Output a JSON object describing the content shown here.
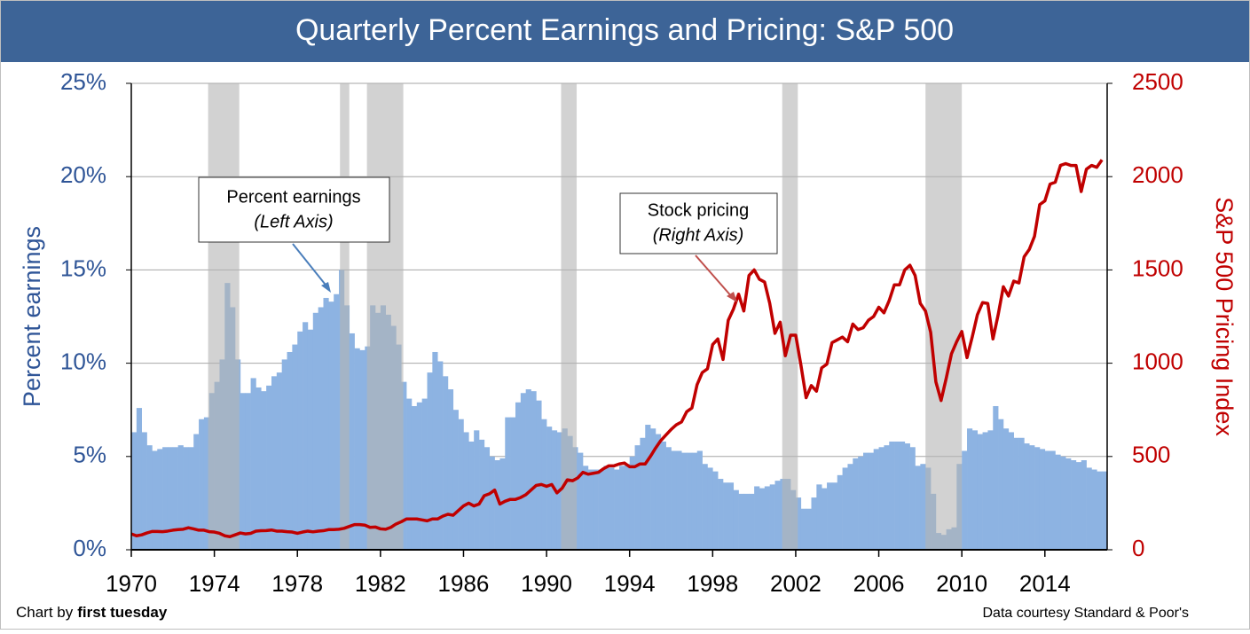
{
  "chart_data": {
    "type": "bar-line",
    "title": "Quarterly Percent Earnings and Pricing: S&P 500",
    "y_label": "Percent earnings",
    "y2_label": "S&P 500 Pricing Index",
    "credit_prefix": "Chart by",
    "credit_name": "first tuesday",
    "source": "Data courtesy Standard & Poor's",
    "annotations": [
      {
        "text": "Percent earnings",
        "subtext": "(Left Axis)"
      },
      {
        "text": "Stock pricing",
        "subtext": "(Right Axis)"
      }
    ],
    "xlim": [
      1970,
      2017
    ],
    "xticks": [
      1970,
      1974,
      1978,
      1982,
      1986,
      1990,
      1994,
      1998,
      2002,
      2006,
      2010,
      2014
    ],
    "ylim": [
      0,
      25
    ],
    "yticks": [
      {
        "value": 0,
        "label": "0%"
      },
      {
        "value": 5,
        "label": "5%"
      },
      {
        "value": 10,
        "label": "10%"
      },
      {
        "value": 15,
        "label": "15%"
      },
      {
        "value": 20,
        "label": "20%"
      },
      {
        "value": 25,
        "label": "25%"
      }
    ],
    "y2lim": [
      0,
      2500
    ],
    "y2ticks": [
      0,
      500,
      1000,
      1500,
      2000,
      2500
    ],
    "grid": true,
    "recession_color": "#b4b4b4",
    "recessions": [
      [
        1973.7,
        1975.2
      ],
      [
        1980.05,
        1980.5
      ],
      [
        1981.35,
        1983.1
      ],
      [
        1990.7,
        1991.45
      ],
      [
        2001.35,
        2002.1
      ],
      [
        2008.25,
        2010.0
      ]
    ],
    "x": [
      1970,
      1970.25,
      1970.5,
      1970.75,
      1971,
      1971.25,
      1971.5,
      1971.75,
      1972,
      1972.25,
      1972.5,
      1972.75,
      1973,
      1973.25,
      1973.5,
      1973.75,
      1974,
      1974.25,
      1974.5,
      1974.75,
      1975,
      1975.25,
      1975.5,
      1975.75,
      1976,
      1976.25,
      1976.5,
      1976.75,
      1977,
      1977.25,
      1977.5,
      1977.75,
      1978,
      1978.25,
      1978.5,
      1978.75,
      1979,
      1979.25,
      1979.5,
      1979.75,
      1980,
      1980.25,
      1980.5,
      1980.75,
      1981,
      1981.25,
      1981.5,
      1981.75,
      1982,
      1982.25,
      1982.5,
      1982.75,
      1983,
      1983.25,
      1983.5,
      1983.75,
      1984,
      1984.25,
      1984.5,
      1984.75,
      1985,
      1985.25,
      1985.5,
      1985.75,
      1986,
      1986.25,
      1986.5,
      1986.75,
      1987,
      1987.25,
      1987.5,
      1987.75,
      1988,
      1988.25,
      1988.5,
      1988.75,
      1989,
      1989.25,
      1989.5,
      1989.75,
      1990,
      1990.25,
      1990.5,
      1990.75,
      1991,
      1991.25,
      1991.5,
      1991.75,
      1992,
      1992.25,
      1992.5,
      1992.75,
      1993,
      1993.25,
      1993.5,
      1993.75,
      1994,
      1994.25,
      1994.5,
      1994.75,
      1995,
      1995.25,
      1995.5,
      1995.75,
      1996,
      1996.25,
      1996.5,
      1996.75,
      1997,
      1997.25,
      1997.5,
      1997.75,
      1998,
      1998.25,
      1998.5,
      1998.75,
      1999,
      1999.25,
      1999.5,
      1999.75,
      2000,
      2000.25,
      2000.5,
      2000.75,
      2001,
      2001.25,
      2001.5,
      2001.75,
      2002,
      2002.25,
      2002.5,
      2002.75,
      2003,
      2003.25,
      2003.5,
      2003.75,
      2004,
      2004.25,
      2004.5,
      2004.75,
      2005,
      2005.25,
      2005.5,
      2005.75,
      2006,
      2006.25,
      2006.5,
      2006.75,
      2007,
      2007.25,
      2007.5,
      2007.75,
      2008,
      2008.25,
      2008.5,
      2008.75,
      2009,
      2009.25,
      2009.5,
      2009.75,
      2010,
      2010.25,
      2010.5,
      2010.75,
      2011,
      2011.25,
      2011.5,
      2011.75,
      2012,
      2012.25,
      2012.5,
      2012.75,
      2013,
      2013.25,
      2013.5,
      2013.75,
      2014,
      2014.25,
      2014.5,
      2014.75,
      2015,
      2015.25,
      2015.5,
      2015.75,
      2016,
      2016.25,
      2016.5,
      2016.75
    ],
    "series": [
      {
        "kind": "bar",
        "axis": "y",
        "color": "#8db3e2",
        "values": [
          6.3,
          7.6,
          6.3,
          5.6,
          5.3,
          5.4,
          5.5,
          5.5,
          5.5,
          5.6,
          5.5,
          5.5,
          6.2,
          7.0,
          7.1,
          8.4,
          9.0,
          10.2,
          14.3,
          13.0,
          10.2,
          8.4,
          8.4,
          9.2,
          8.7,
          8.5,
          8.8,
          9.3,
          9.5,
          10.2,
          10.6,
          11.0,
          11.7,
          12.2,
          11.8,
          12.7,
          13.0,
          13.5,
          13.3,
          13.7,
          15.0,
          13.1,
          11.6,
          10.8,
          10.7,
          10.9,
          13.1,
          12.7,
          13.1,
          12.6,
          12.0,
          11.0,
          9.0,
          8.1,
          7.7,
          7.9,
          8.1,
          9.5,
          10.6,
          10.1,
          9.3,
          8.6,
          7.5,
          7.0,
          6.3,
          5.8,
          6.4,
          5.9,
          5.5,
          5.0,
          4.8,
          4.9,
          7.1,
          7.1,
          7.9,
          8.4,
          8.6,
          8.5,
          8.0,
          7.0,
          6.6,
          6.4,
          6.3,
          6.5,
          6.1,
          5.5,
          5.2,
          4.5,
          4.3,
          4.3,
          4.3,
          4.5,
          4.4,
          4.3,
          4.5,
          4.6,
          5.0,
          5.6,
          6.0,
          6.7,
          6.5,
          6.2,
          5.8,
          5.5,
          5.3,
          5.3,
          5.2,
          5.2,
          5.2,
          5.3,
          4.6,
          4.4,
          4.2,
          3.8,
          3.6,
          3.6,
          3.2,
          3.0,
          3.0,
          3.0,
          3.4,
          3.3,
          3.4,
          3.5,
          3.7,
          3.8,
          3.8,
          3.2,
          2.8,
          2.2,
          2.2,
          2.8,
          3.5,
          3.3,
          3.6,
          3.6,
          4.0,
          4.4,
          4.6,
          4.9,
          5.0,
          5.2,
          5.2,
          5.4,
          5.5,
          5.6,
          5.8,
          5.8,
          5.8,
          5.7,
          5.5,
          4.5,
          4.6,
          4.4,
          3.0,
          0.9,
          0.8,
          1.1,
          1.2,
          4.6,
          5.3,
          6.5,
          6.4,
          6.2,
          6.3,
          6.4,
          7.7,
          7.0,
          6.5,
          6.3,
          6.0,
          6.0,
          5.7,
          5.6,
          5.5,
          5.4,
          5.3,
          5.3,
          5.1,
          5.0,
          4.9,
          4.8,
          4.7,
          4.8,
          4.4,
          4.3,
          4.2,
          4.2
        ]
      },
      {
        "kind": "line",
        "axis": "y2",
        "color": "#c00000",
        "values": [
          85,
          75,
          80,
          90,
          98,
          98,
          97,
          100,
          105,
          108,
          110,
          118,
          112,
          105,
          105,
          97,
          95,
          88,
          75,
          70,
          80,
          90,
          85,
          88,
          100,
          102,
          103,
          106,
          100,
          100,
          97,
          95,
          88,
          95,
          100,
          96,
          100,
          102,
          108,
          108,
          110,
          115,
          125,
          135,
          135,
          132,
          120,
          122,
          112,
          110,
          120,
          138,
          150,
          165,
          165,
          165,
          160,
          155,
          165,
          165,
          180,
          190,
          185,
          210,
          235,
          250,
          235,
          245,
          290,
          300,
          320,
          245,
          260,
          270,
          270,
          280,
          295,
          320,
          345,
          350,
          340,
          350,
          305,
          330,
          375,
          370,
          385,
          415,
          405,
          410,
          415,
          435,
          450,
          450,
          460,
          465,
          445,
          445,
          460,
          460,
          500,
          545,
          585,
          615,
          645,
          670,
          685,
          740,
          760,
          885,
          950,
          970,
          1100,
          1130,
          1020,
          1230,
          1290,
          1370,
          1280,
          1470,
          1500,
          1450,
          1435,
          1320,
          1160,
          1220,
          1040,
          1150,
          1150,
          990,
          815,
          880,
          850,
          975,
          995,
          1110,
          1125,
          1140,
          1115,
          1210,
          1180,
          1190,
          1230,
          1250,
          1300,
          1270,
          1335,
          1420,
          1420,
          1500,
          1525,
          1470,
          1320,
          1280,
          1165,
          900,
          800,
          920,
          1050,
          1115,
          1170,
          1030,
          1140,
          1260,
          1325,
          1320,
          1130,
          1260,
          1410,
          1360,
          1440,
          1430,
          1570,
          1610,
          1680,
          1850,
          1870,
          1960,
          1970,
          2060,
          2070,
          2060,
          2060,
          1920,
          2040,
          2060,
          2050,
          2090
        ]
      }
    ]
  }
}
